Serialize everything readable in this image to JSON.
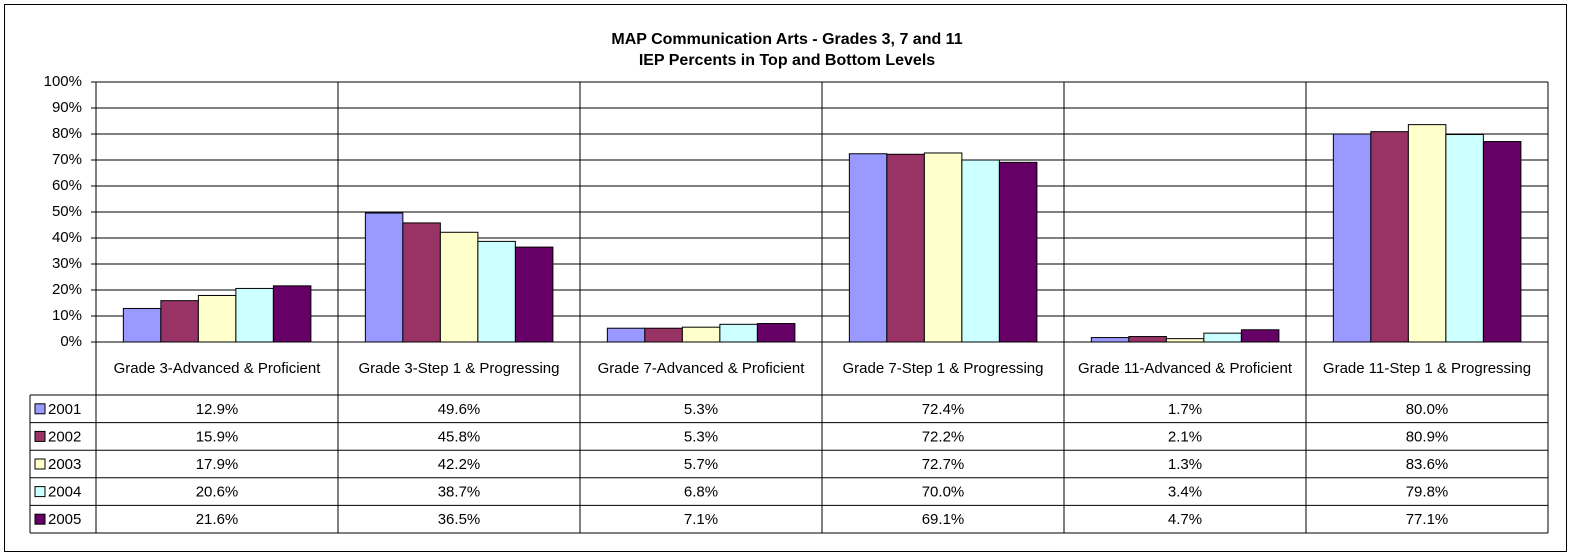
{
  "chart_data": {
    "type": "bar",
    "title": "MAP Communication Arts - Grades 3, 7 and 11",
    "subtitle": "IEP Percents in Top and Bottom Levels",
    "categories": [
      "Grade 3-Advanced & Proficient",
      "Grade 3-Step 1 & Progressing",
      "Grade 7-Advanced & Proficient",
      "Grade 7-Step 1 & Progressing",
      "Grade 11-Advanced & Proficient",
      "Grade 11-Step 1 & Progressing"
    ],
    "series": [
      {
        "name": "2001",
        "color": "#9999ff",
        "values": [
          12.9,
          49.6,
          5.3,
          72.4,
          1.7,
          80.0
        ],
        "value_labels": [
          "12.9%",
          "49.6%",
          "5.3%",
          "72.4%",
          "1.7%",
          "80.0%"
        ]
      },
      {
        "name": "2002",
        "color": "#993366",
        "values": [
          15.9,
          45.8,
          5.3,
          72.2,
          2.1,
          80.9
        ],
        "value_labels": [
          "15.9%",
          "45.8%",
          "5.3%",
          "72.2%",
          "2.1%",
          "80.9%"
        ]
      },
      {
        "name": "2003",
        "color": "#ffffcc",
        "values": [
          17.9,
          42.2,
          5.7,
          72.7,
          1.3,
          83.6
        ],
        "value_labels": [
          "17.9%",
          "42.2%",
          "5.7%",
          "72.7%",
          "1.3%",
          "83.6%"
        ]
      },
      {
        "name": "2004",
        "color": "#ccffff",
        "values": [
          20.6,
          38.7,
          6.8,
          70.0,
          3.4,
          79.8
        ],
        "value_labels": [
          "20.6%",
          "38.7%",
          "6.8%",
          "70.0%",
          "3.4%",
          "79.8%"
        ]
      },
      {
        "name": "2005",
        "color": "#660066",
        "values": [
          21.6,
          36.5,
          7.1,
          69.1,
          4.7,
          77.1
        ],
        "value_labels": [
          "21.6%",
          "36.5%",
          "7.1%",
          "69.1%",
          "4.7%",
          "77.1%"
        ]
      }
    ],
    "ylim": [
      0,
      100
    ],
    "yticks": [
      {
        "value": 0,
        "label": "0%"
      },
      {
        "value": 10,
        "label": "10%"
      },
      {
        "value": 20,
        "label": "20%"
      },
      {
        "value": 30,
        "label": "30%"
      },
      {
        "value": 40,
        "label": "40%"
      },
      {
        "value": 50,
        "label": "50%"
      },
      {
        "value": 60,
        "label": "60%"
      },
      {
        "value": 70,
        "label": "70%"
      },
      {
        "value": 80,
        "label": "80%"
      },
      {
        "value": 90,
        "label": "90%"
      },
      {
        "value": 100,
        "label": "100%"
      }
    ],
    "grid": true
  }
}
